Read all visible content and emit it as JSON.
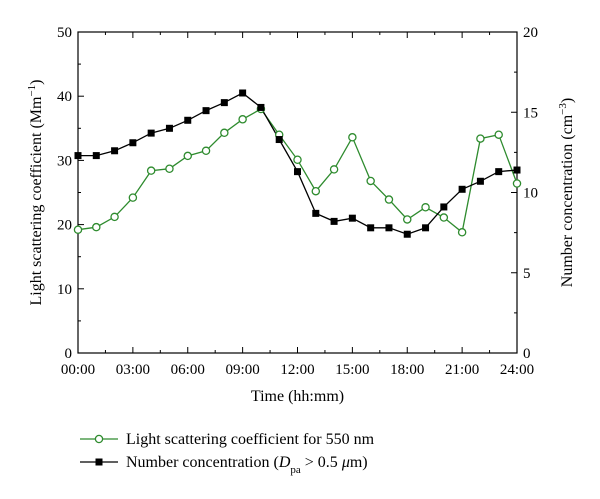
{
  "chart_data": {
    "type": "line",
    "xlabel": "Time (hh:mm)",
    "ylabel_left": {
      "text": "Light scattering coefficient (Mm",
      "sup": "−1",
      "tail": ")"
    },
    "ylabel_right": {
      "text": "Number concentration (cm",
      "sup": "−3",
      "tail": ")"
    },
    "x_ticks": [
      "00:00",
      "03:00",
      "06:00",
      "09:00",
      "12:00",
      "15:00",
      "18:00",
      "21:00",
      "24:00"
    ],
    "xlim": [
      0,
      24
    ],
    "ylim_left": [
      0,
      50
    ],
    "y_ticks_left": [
      "0",
      "10",
      "20",
      "30",
      "40",
      "50"
    ],
    "ylim_right": [
      0,
      20
    ],
    "y_ticks_right": [
      "0",
      "5",
      "10",
      "15",
      "20"
    ],
    "x": [
      0,
      1,
      2,
      3,
      4,
      5,
      6,
      7,
      8,
      9,
      10,
      11,
      12,
      13,
      14,
      15,
      16,
      17,
      18,
      19,
      20,
      21,
      22,
      23,
      24
    ],
    "series": [
      {
        "name": "Light scattering coefficient for 550 nm",
        "axis": "left",
        "color": "#2e8b2e",
        "marker": "open-circle",
        "values": [
          19.2,
          19.6,
          21.2,
          24.2,
          28.4,
          28.7,
          30.7,
          31.5,
          34.3,
          36.4,
          38.0,
          34.0,
          30.1,
          25.2,
          28.6,
          33.6,
          26.8,
          23.9,
          20.8,
          22.7,
          21.1,
          18.8,
          33.4,
          34.0,
          26.4
        ]
      },
      {
        "name": "Number concentration",
        "axis": "right",
        "color": "#000000",
        "marker": "filled-square",
        "values": [
          12.3,
          12.3,
          12.6,
          13.1,
          13.7,
          14.0,
          14.5,
          15.1,
          15.6,
          16.2,
          15.3,
          13.3,
          11.3,
          8.7,
          8.2,
          8.4,
          7.8,
          7.8,
          7.4,
          7.8,
          9.1,
          10.2,
          10.7,
          11.3,
          11.4
        ]
      }
    ],
    "legend": {
      "position": "bottom-left",
      "entries": [
        {
          "label": "Light scattering coefficient for 550 nm"
        },
        {
          "label_prefix": "Number concentration (",
          "label_var": "D",
          "label_sub": "pa",
          "label_suffix": " > 0.5 ",
          "label_mu": "μ",
          "label_end": "m)"
        }
      ]
    }
  }
}
